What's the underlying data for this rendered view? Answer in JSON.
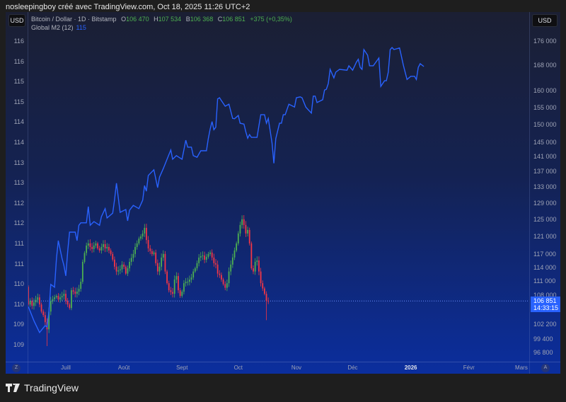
{
  "credit": "nosleepingboy créé avec TradingView.com, Oct 18, 2025 11:26 UTC+2",
  "currency_left": "USD",
  "currency_right": "USD",
  "legend": {
    "symbol": "Bitcoin / Dollar · 1D · Bitstamp",
    "o_label": "O",
    "o": "106 470",
    "h_label": "H",
    "h": "107 534",
    "b_label": "B",
    "b": "106 368",
    "c_label": "C",
    "c": "106 851",
    "change": "+375 (+0,35%)",
    "m2_label": "Global M2 (12)",
    "m2_value": "115"
  },
  "price_tag": {
    "price": "106 851",
    "countdown": "14:33:15"
  },
  "bottom_left_btn": "Z",
  "bottom_right_btn": "A",
  "logo_text": "TradingView",
  "colors": {
    "up": "#4caf50",
    "down": "#f23645",
    "m2": "#2962ff",
    "tag": "#2962ff"
  },
  "chart_data": {
    "type": "candlestick+line",
    "left_axis": {
      "series": "Global M2 (12)",
      "ticks": [
        {
          "value": 116.3,
          "label": "116"
        },
        {
          "value": 115.8,
          "label": "116"
        },
        {
          "value": 115.3,
          "label": "115"
        },
        {
          "value": 114.8,
          "label": "115"
        },
        {
          "value": 114.3,
          "label": "114"
        },
        {
          "value": 113.8,
          "label": "114"
        },
        {
          "value": 113.3,
          "label": "113"
        },
        {
          "value": 112.8,
          "label": "113"
        },
        {
          "value": 112.3,
          "label": "112"
        },
        {
          "value": 111.8,
          "label": "112"
        },
        {
          "value": 111.3,
          "label": "111"
        },
        {
          "value": 110.8,
          "label": "111"
        },
        {
          "value": 110.3,
          "label": "110"
        },
        {
          "value": 109.8,
          "label": "110"
        },
        {
          "value": 109.3,
          "label": "109"
        },
        {
          "value": 108.8,
          "label": "109"
        }
      ]
    },
    "right_axis": {
      "scale": "log",
      "ticks": [
        {
          "value": 176000,
          "label": "176 000"
        },
        {
          "value": 168000,
          "label": "168 000"
        },
        {
          "value": 160000,
          "label": "160 000"
        },
        {
          "value": 155000,
          "label": "155 000"
        },
        {
          "value": 150000,
          "label": "150 000"
        },
        {
          "value": 145000,
          "label": "145 000"
        },
        {
          "value": 141000,
          "label": "141 000"
        },
        {
          "value": 137000,
          "label": "137 000"
        },
        {
          "value": 133000,
          "label": "133 000"
        },
        {
          "value": 129000,
          "label": "129 000"
        },
        {
          "value": 125000,
          "label": "125 000"
        },
        {
          "value": 121000,
          "label": "121 000"
        },
        {
          "value": 117000,
          "label": "117 000"
        },
        {
          "value": 114000,
          "label": "114 000"
        },
        {
          "value": 111000,
          "label": "111 000"
        },
        {
          "value": 108000,
          "label": "108 000"
        },
        {
          "value": 102200,
          "label": "102 200"
        },
        {
          "value": 99400,
          "label": "99 400"
        },
        {
          "value": 96800,
          "label": "96 800"
        }
      ]
    },
    "time_axis": [
      {
        "day": 20,
        "label": "Juill"
      },
      {
        "day": 51,
        "label": "Août"
      },
      {
        "day": 82,
        "label": "Sept"
      },
      {
        "day": 112,
        "label": "Oct"
      },
      {
        "day": 143,
        "label": "Nov"
      },
      {
        "day": 173,
        "label": "Déc"
      },
      {
        "day": 204,
        "label": "2026",
        "bold": true
      },
      {
        "day": 235,
        "label": "Févr"
      },
      {
        "day": 263,
        "label": "Mars"
      }
    ],
    "btc_first_open": 109800,
    "btc_closes": [
      [
        0,
        106140
      ],
      [
        1,
        106870
      ],
      [
        2,
        105850
      ],
      [
        3,
        106570
      ],
      [
        5,
        107600
      ],
      [
        6,
        106140
      ],
      [
        7,
        104710
      ],
      [
        8,
        104000
      ],
      [
        9,
        102600
      ],
      [
        10,
        101200,
        98000
      ],
      [
        11,
        104710
      ],
      [
        12,
        106870
      ],
      [
        14,
        107600
      ],
      [
        15,
        107900
      ],
      [
        16,
        107160
      ],
      [
        17,
        107600
      ],
      [
        18,
        107900
      ],
      [
        19,
        108340
      ],
      [
        20,
        106870
      ],
      [
        22,
        105420
      ],
      [
        23,
        109080
      ],
      [
        24,
        108790
      ],
      [
        25,
        108340
      ],
      [
        26,
        108790
      ],
      [
        27,
        109380
      ],
      [
        28,
        110870
      ],
      [
        29,
        115190
      ],
      [
        30,
        117170
      ],
      [
        31,
        118850
      ],
      [
        32,
        119340
      ],
      [
        33,
        118530
      ],
      [
        34,
        118060
      ],
      [
        35,
        118850
      ],
      [
        36,
        119340
      ],
      [
        37,
        118210
      ],
      [
        38,
        117740
      ],
      [
        39,
        118530
      ],
      [
        40,
        119170
      ],
      [
        41,
        118210
      ],
      [
        42,
        118530
      ],
      [
        43,
        117740
      ],
      [
        44,
        116950
      ],
      [
        45,
        115690
      ],
      [
        46,
        114130
      ],
      [
        47,
        113080
      ],
      [
        49,
        113540
      ],
      [
        50,
        114590
      ],
      [
        51,
        114130
      ],
      [
        52,
        112620
      ],
      [
        53,
        113780
      ],
      [
        54,
        115190
      ],
      [
        56,
        116950
      ],
      [
        57,
        118530
      ],
      [
        58,
        119340
      ],
      [
        59,
        120450
      ],
      [
        60,
        120940
      ],
      [
        61,
        121640
      ],
      [
        62,
        122960
      ],
      [
        63,
        120130
      ],
      [
        64,
        118210
      ],
      [
        66,
        116950
      ],
      [
        67,
        117270
      ],
      [
        68,
        114900
      ],
      [
        69,
        113080
      ],
      [
        70,
        114130
      ],
      [
        71,
        116140
      ],
      [
        72,
        116950
      ],
      [
        73,
        113080
      ],
      [
        74,
        110570
      ],
      [
        75,
        109080
      ],
      [
        77,
        108340
      ],
      [
        78,
        111340
      ],
      [
        79,
        112090
      ],
      [
        80,
        109080
      ],
      [
        81,
        107900
      ],
      [
        82,
        108790
      ],
      [
        83,
        110570
      ],
      [
        84,
        110870
      ],
      [
        85,
        110870
      ],
      [
        87,
        111790
      ],
      [
        88,
        113080
      ],
      [
        89,
        113780
      ],
      [
        90,
        114900
      ],
      [
        91,
        116140
      ],
      [
        92,
        116450
      ],
      [
        93,
        116610
      ],
      [
        94,
        115660
      ],
      [
        96,
        116950
      ],
      [
        97,
        117270
      ],
      [
        98,
        116140
      ],
      [
        99,
        114900
      ],
      [
        100,
        114590
      ],
      [
        101,
        112620
      ],
      [
        102,
        112320
      ],
      [
        104,
        110380
      ],
      [
        105,
        109600
      ],
      [
        106,
        110570
      ],
      [
        107,
        113080
      ],
      [
        108,
        114590
      ],
      [
        110,
        117740
      ],
      [
        111,
        119340
      ],
      [
        112,
        121640
      ],
      [
        113,
        123640
      ],
      [
        114,
        125000
      ],
      [
        115,
        123640
      ],
      [
        116,
        121640
      ],
      [
        117,
        122470
      ],
      [
        118,
        119340
      ],
      [
        119,
        113780
      ],
      [
        120,
        113080
      ],
      [
        121,
        115190
      ],
      [
        122,
        115500
      ],
      [
        123,
        113080
      ],
      [
        124,
        110570
      ],
      [
        126,
        108340
      ],
      [
        127,
        106870,
        103000
      ],
      [
        128,
        106851
      ]
    ],
    "m2_series": [
      [
        0,
        109.74
      ],
      [
        3,
        109.39
      ],
      [
        6,
        109.1
      ],
      [
        9,
        109.27
      ],
      [
        10,
        109.24
      ],
      [
        11,
        109.62
      ],
      [
        12,
        110.29
      ],
      [
        14,
        110.22
      ],
      [
        15,
        110.93
      ],
      [
        16,
        111.37
      ],
      [
        18,
        110.93
      ],
      [
        19,
        110.76
      ],
      [
        20,
        110.5
      ],
      [
        21,
        111.11
      ],
      [
        22,
        111.58
      ],
      [
        25,
        111.58
      ],
      [
        26,
        111.37
      ],
      [
        27,
        111.75
      ],
      [
        28,
        111.81
      ],
      [
        31,
        111.81
      ],
      [
        32,
        112.21
      ],
      [
        33,
        111.75
      ],
      [
        35,
        111.84
      ],
      [
        38,
        111.75
      ],
      [
        39,
        111.96
      ],
      [
        41,
        112.16
      ],
      [
        42,
        111.93
      ],
      [
        45,
        112.05
      ],
      [
        46,
        112.38
      ],
      [
        47,
        112.79
      ],
      [
        49,
        112.07
      ],
      [
        52,
        112.14
      ],
      [
        53,
        111.86
      ],
      [
        54,
        112.12
      ],
      [
        56,
        112.24
      ],
      [
        59,
        112.16
      ],
      [
        61,
        112.37
      ],
      [
        62,
        112.73
      ],
      [
        63,
        112.59
      ],
      [
        64,
        112.98
      ],
      [
        67,
        113.12
      ],
      [
        69,
        112.68
      ],
      [
        70,
        112.94
      ],
      [
        72,
        113.15
      ],
      [
        74,
        113.38
      ],
      [
        76,
        113.61
      ],
      [
        77,
        113.38
      ],
      [
        79,
        113.47
      ],
      [
        82,
        113.38
      ],
      [
        84,
        113.85
      ],
      [
        85,
        113.68
      ],
      [
        87,
        113.68
      ],
      [
        88,
        113.47
      ],
      [
        90,
        113.43
      ],
      [
        92,
        113.59
      ],
      [
        95,
        113.59
      ],
      [
        96,
        113.89
      ],
      [
        97,
        114.13
      ],
      [
        98,
        114.31
      ],
      [
        99,
        114.11
      ],
      [
        100,
        114.17
      ],
      [
        101,
        114.87
      ],
      [
        102,
        114.9
      ],
      [
        103,
        114.83
      ],
      [
        105,
        114.69
      ],
      [
        107,
        114.74
      ],
      [
        109,
        114.39
      ],
      [
        110,
        114.38
      ],
      [
        112,
        114.46
      ],
      [
        113,
        114.27
      ],
      [
        115,
        114.25
      ],
      [
        116,
        114.06
      ],
      [
        117,
        113.9
      ],
      [
        118,
        113.99
      ],
      [
        119,
        113.92
      ],
      [
        122,
        113.92
      ],
      [
        123,
        114.2
      ],
      [
        124,
        114.48
      ],
      [
        126,
        114.48
      ],
      [
        127,
        114.27
      ],
      [
        128,
        114.39
      ],
      [
        130,
        113.78
      ],
      [
        131,
        113.28
      ],
      [
        132,
        113.89
      ],
      [
        134,
        114.27
      ],
      [
        135,
        114.27
      ],
      [
        136,
        114.48
      ],
      [
        137,
        114.48
      ],
      [
        139,
        114.74
      ],
      [
        142,
        114.67
      ],
      [
        143,
        114.9
      ],
      [
        145,
        114.92
      ],
      [
        146,
        114.9
      ],
      [
        148,
        114.67
      ],
      [
        149,
        114.62
      ],
      [
        151,
        114.52
      ],
      [
        152,
        114.94
      ],
      [
        153,
        114.94
      ],
      [
        154,
        114.78
      ],
      [
        157,
        114.85
      ],
      [
        158,
        115.09
      ],
      [
        159,
        115.11
      ],
      [
        160,
        115.25
      ],
      [
        161,
        115.6
      ],
      [
        163,
        115.39
      ],
      [
        164,
        115.53
      ],
      [
        166,
        115.6
      ],
      [
        170,
        115.58
      ],
      [
        171,
        115.69
      ],
      [
        173,
        115.58
      ],
      [
        175,
        115.78
      ],
      [
        176,
        115.85
      ],
      [
        177,
        115.65
      ],
      [
        178,
        115.6
      ],
      [
        179,
        116.09
      ],
      [
        181,
        115.95
      ],
      [
        182,
        115.69
      ],
      [
        184,
        115.69
      ],
      [
        187,
        115.88
      ],
      [
        188,
        115.18
      ],
      [
        190,
        115.32
      ],
      [
        191,
        115.32
      ],
      [
        192,
        115.53
      ],
      [
        193,
        116.09
      ],
      [
        194,
        116.14
      ],
      [
        195,
        116.09
      ],
      [
        198,
        116.13
      ],
      [
        199,
        115.92
      ],
      [
        200,
        115.71
      ],
      [
        202,
        115.35
      ],
      [
        204,
        115.43
      ],
      [
        206,
        115.43
      ],
      [
        207,
        115.35
      ],
      [
        208,
        115.65
      ],
      [
        209,
        115.74
      ],
      [
        211,
        115.67
      ]
    ],
    "last_price": 106851
  }
}
